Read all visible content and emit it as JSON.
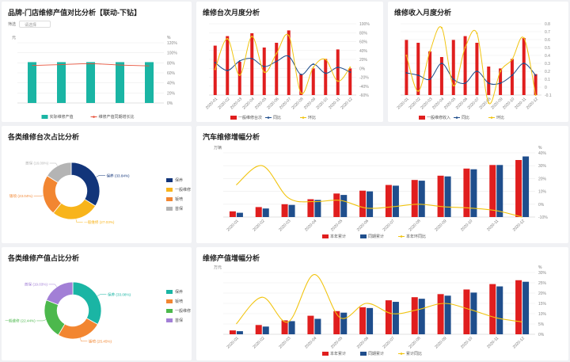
{
  "titles": {
    "p1": "品牌-门店维修产值对比分析【联动-下钻】",
    "p2": "维修台次月度分析",
    "p3": "维修收入月度分析",
    "p4": "各类维修台次占比分析",
    "p5": "汽车维修增幅分析",
    "p6": "各类维修产值占比分析",
    "p7": "维修产值增幅分析"
  },
  "filter": {
    "label": "筛选",
    "placeholder": "请选择"
  },
  "chart_data": [
    {
      "id": "brand",
      "type": "bar",
      "categories": [
        "",
        "",
        "",
        "",
        ""
      ],
      "series": [
        {
          "name": "实际维修产值",
          "values": [
            95,
            95,
            95,
            95,
            95
          ],
          "color": "#1ab5a4"
        },
        {
          "name": "维修产值同期增长比",
          "values": [
            86,
            88,
            90,
            87,
            85
          ],
          "color": "#e8543d"
        }
      ],
      "ylim": [
        0,
        100
      ],
      "yticks_right": [
        "0%",
        "20%",
        "40%",
        "60%",
        "80%",
        "100%",
        "120%"
      ],
      "ylabel_left": "元",
      "ylabel_right": "%"
    },
    {
      "id": "visits_month",
      "type": "bar",
      "categories": [
        "2020-01",
        "2020-02",
        "2020-03",
        "2020-04",
        "2020-05",
        "2020-06",
        "2020-07",
        "2020-08",
        "2020-09",
        "2020-10",
        "2020-11",
        "2020-12"
      ],
      "series": [
        {
          "name": "一般维修台次",
          "values": [
            52,
            62,
            35,
            65,
            50,
            55,
            68,
            22,
            28,
            38,
            48,
            28
          ],
          "color": "#e01e1e"
        },
        {
          "name": "同比",
          "values": [
            2,
            -18,
            6,
            12,
            -8,
            5,
            18,
            -28,
            -2,
            -25,
            -10,
            -22
          ],
          "color": "#1f4e8c"
        },
        {
          "name": "环比",
          "values": [
            -15,
            62,
            -30,
            68,
            -22,
            25,
            70,
            -75,
            -10,
            10,
            -45,
            -10
          ],
          "color": "#f1c40f"
        }
      ],
      "yticks_right": [
        "-60%",
        "-40%",
        "-20%",
        "0%",
        "20%",
        "40%",
        "60%",
        "80%",
        "100%"
      ]
    },
    {
      "id": "revenue_month",
      "type": "bar",
      "categories": [
        "2020-01",
        "2020-02",
        "2020-03",
        "2020-04",
        "2020-05",
        "2020-06",
        "2020-07",
        "2020-08",
        "2020-09",
        "2020-10",
        "2020-11",
        "2020-12"
      ],
      "series": [
        {
          "name": "一般维修收入",
          "values": [
            58,
            55,
            46,
            40,
            58,
            62,
            55,
            30,
            28,
            38,
            60,
            22
          ],
          "color": "#e01e1e"
        },
        {
          "name": "同比",
          "values": [
            0.18,
            0.15,
            0.1,
            0.3,
            0.1,
            0.05,
            0.2,
            0.05,
            0.05,
            0.15,
            0.3,
            0.15
          ],
          "color": "#1f4e8c"
        },
        {
          "name": "环比",
          "values": [
            0.4,
            -0.05,
            0.45,
            0.75,
            0.02,
            0.5,
            0.68,
            -0.2,
            0.2,
            0.35,
            0.62,
            -0.1
          ],
          "color": "#f1c40f"
        }
      ],
      "yticks_right": [
        "-0.1",
        "0",
        "0.1",
        "0.2",
        "0.3",
        "0.4",
        "0.5",
        "0.6",
        "0.7",
        "0.8"
      ]
    },
    {
      "id": "visit_share",
      "type": "pie",
      "labels": [
        "保养",
        "一般维修",
        "钣喷",
        "首保"
      ],
      "values": [
        33.84,
        27.03,
        23.04,
        16.09
      ],
      "display": [
        "保养 (33.84%)",
        "一般维修 (27.03%)",
        "钣喷 (23.04%)",
        "首保 (16.09%)"
      ],
      "colors": [
        "#12357a",
        "#f8b41b",
        "#f28631",
        "#b4b4b4"
      ]
    },
    {
      "id": "auto_growth",
      "type": "bar",
      "categories": [
        "2020-01",
        "2020-02",
        "2020-03",
        "2020-04",
        "2020-05",
        "2020-06",
        "2020-07",
        "2020-08",
        "2020-09",
        "2020-10",
        "2020-11",
        "2020-12"
      ],
      "series": [
        {
          "name": "本年累计",
          "values": [
            8,
            14,
            18,
            25,
            33,
            37,
            45,
            52,
            58,
            68,
            73,
            80
          ],
          "color": "#e01e1e"
        },
        {
          "name": "同期累计",
          "values": [
            6,
            12,
            17,
            24,
            31,
            36,
            44,
            51,
            57,
            67,
            73,
            85
          ],
          "color": "#1f4e8c"
        },
        {
          "name": "本年环同比",
          "values": [
            15,
            30,
            5,
            2,
            3,
            -3,
            -2,
            0,
            -2,
            -3,
            -5,
            -10
          ],
          "color": "#f1c40f"
        }
      ],
      "ylabel_left": "万辆",
      "ylabel_right": "%",
      "yticks_right": [
        "-10%",
        "0%",
        "10%",
        "20%",
        "30%",
        "40%"
      ]
    },
    {
      "id": "output_share",
      "type": "pie",
      "labels": [
        "保养",
        "钣喷",
        "一般维修",
        "首保"
      ],
      "values": [
        33.08,
        25.45,
        22.44,
        19.03
      ],
      "display": [
        "保养 (33.08%)",
        "钣喷 (25.45%)",
        "一般维修 (22.44%)",
        "首保 (19.03%)"
      ],
      "colors": [
        "#1ab5a4",
        "#f28631",
        "#4cb84c",
        "#a27fd6"
      ]
    },
    {
      "id": "output_growth",
      "type": "bar",
      "categories": [
        "2020-01",
        "2020-02",
        "2020-03",
        "2020-04",
        "2020-05",
        "2020-06",
        "2020-07",
        "2020-08",
        "2020-09",
        "2020-10",
        "2020-11",
        "2020-12"
      ],
      "series": [
        {
          "name": "本年累计",
          "values": [
            5,
            12,
            18,
            24,
            30,
            35,
            44,
            48,
            52,
            58,
            65,
            70
          ],
          "color": "#e01e1e"
        },
        {
          "name": "同期累计",
          "values": [
            4,
            10,
            17,
            20,
            28,
            34,
            42,
            46,
            50,
            54,
            62,
            68
          ],
          "color": "#1f4e8c"
        },
        {
          "name": "累计同比",
          "values": [
            5,
            18,
            6,
            29,
            8,
            15,
            10,
            12,
            15,
            12,
            8,
            6
          ],
          "color": "#f1c40f"
        }
      ],
      "ylabel_left": "万元",
      "ylabel_right": "%",
      "yticks_right": [
        "0%",
        "5%",
        "10%",
        "15%",
        "20%",
        "25%",
        "30%"
      ]
    }
  ]
}
